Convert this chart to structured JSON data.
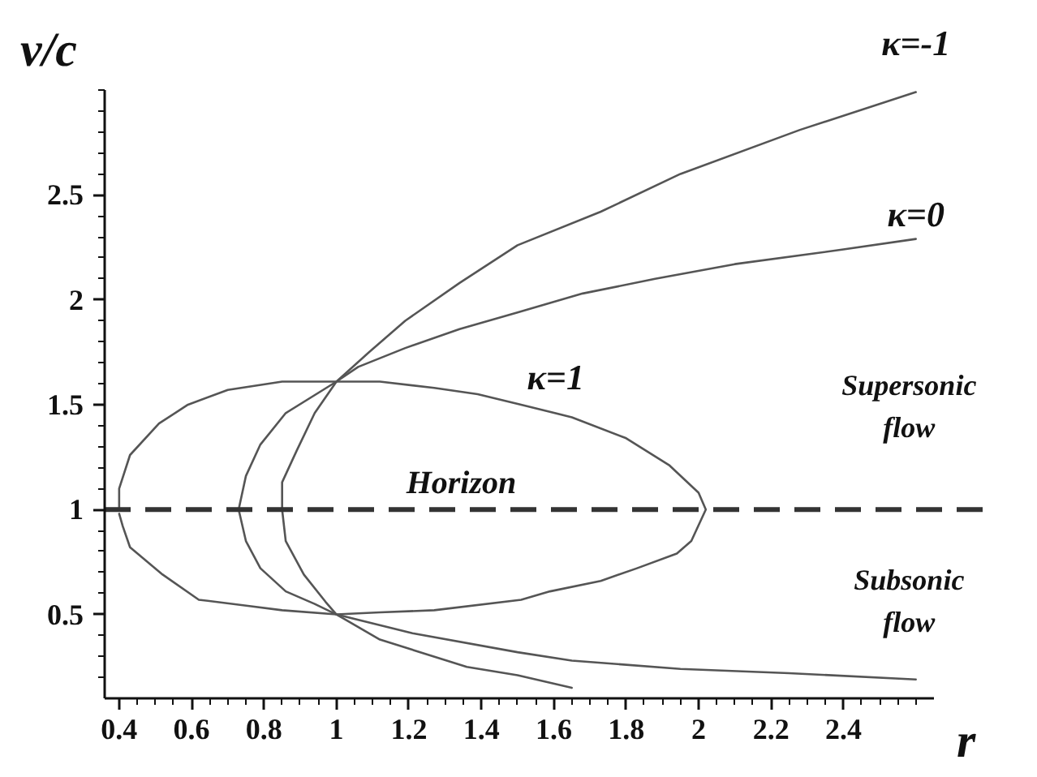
{
  "chart_data": {
    "type": "line",
    "xlabel": "r",
    "ylabel": "v/c",
    "xlim": [
      0.36,
      2.65
    ],
    "ylim": [
      0.1,
      3.0
    ],
    "xticks": [
      0.4,
      {
        "value": 0.45,
        "label": null
      },
      {
        "value": 0.5,
        "label": null
      },
      {
        "value": 0.55,
        "label": null
      },
      0.6,
      {
        "value": 0.65,
        "label": null
      },
      {
        "value": 0.7,
        "label": null
      },
      {
        "value": 0.75,
        "label": null
      },
      0.8,
      {
        "value": 0.85,
        "label": null
      },
      {
        "value": 0.9,
        "label": null
      },
      {
        "value": 0.95,
        "label": null
      },
      1,
      {
        "value": 1.05,
        "label": null
      },
      {
        "value": 1.1,
        "label": null
      },
      {
        "value": 1.15,
        "label": null
      },
      1.2,
      {
        "value": 1.25,
        "label": null
      },
      {
        "value": 1.3,
        "label": null
      },
      {
        "value": 1.35,
        "label": null
      },
      1.4,
      {
        "value": 1.45,
        "label": null
      },
      {
        "value": 1.5,
        "label": null
      },
      {
        "value": 1.55,
        "label": null
      },
      1.6,
      {
        "value": 1.65,
        "label": null
      },
      {
        "value": 1.7,
        "label": null
      },
      {
        "value": 1.75,
        "label": null
      },
      1.8,
      {
        "value": 1.85,
        "label": null
      },
      {
        "value": 1.9,
        "label": null
      },
      {
        "value": 1.95,
        "label": null
      },
      2,
      {
        "value": 2.05,
        "label": null
      },
      {
        "value": 2.1,
        "label": null
      },
      {
        "value": 2.15,
        "label": null
      },
      2.2,
      {
        "value": 2.25,
        "label": null
      },
      {
        "value": 2.3,
        "label": null
      },
      {
        "value": 2.35,
        "label": null
      },
      2.4,
      {
        "value": 2.45,
        "label": null
      },
      {
        "value": 2.5,
        "label": null
      },
      {
        "value": 2.55,
        "label": null
      },
      {
        "value": 2.6,
        "label": null
      }
    ],
    "yticks": [
      {
        "value": 0.2,
        "label": null
      },
      {
        "value": 0.3,
        "label": null
      },
      {
        "value": 0.4,
        "label": null
      },
      0.5,
      {
        "value": 0.6,
        "label": null
      },
      {
        "value": 0.7,
        "label": null
      },
      {
        "value": 0.8,
        "label": null
      },
      {
        "value": 0.9,
        "label": null
      },
      1,
      {
        "value": 1.1,
        "label": null
      },
      {
        "value": 1.2,
        "label": null
      },
      {
        "value": 1.3,
        "label": null
      },
      {
        "value": 1.4,
        "label": null
      },
      1.5,
      {
        "value": 1.6,
        "label": null
      },
      {
        "value": 1.7,
        "label": null
      },
      {
        "value": 1.8,
        "label": null
      },
      {
        "value": 1.9,
        "label": null
      },
      2,
      {
        "value": 2.1,
        "label": null
      },
      {
        "value": 2.2,
        "label": null
      },
      {
        "value": 2.3,
        "label": null
      },
      {
        "value": 2.4,
        "label": null
      },
      2.5,
      {
        "value": 2.6,
        "label": null
      },
      {
        "value": 2.7,
        "label": null
      },
      {
        "value": 2.8,
        "label": null
      },
      {
        "value": 2.9,
        "label": null
      },
      {
        "value": 3.0,
        "label": null
      }
    ],
    "grid": false,
    "legend": false,
    "line_style": "solid",
    "series": [
      {
        "name": "κ=-1",
        "color": "#555555",
        "x": [
          2.6,
          2.28,
          1.95,
          1.73,
          1.5,
          1.34,
          1.19,
          1.09,
          1.0,
          0.94,
          0.89,
          0.85,
          0.85,
          0.86,
          0.91,
          0.97,
          1.0,
          1.12,
          1.36,
          1.5,
          1.65
        ],
        "values": [
          2.99,
          2.81,
          2.6,
          2.42,
          2.26,
          2.08,
          1.9,
          1.75,
          1.61,
          1.46,
          1.28,
          1.13,
          1.0,
          0.85,
          0.69,
          0.56,
          0.5,
          0.38,
          0.25,
          0.21,
          0.15
        ]
      },
      {
        "name": "κ=0",
        "color": "#555555",
        "x": [
          2.6,
          2.4,
          2.1,
          1.88,
          1.68,
          1.5,
          1.34,
          1.19,
          1.06,
          1.0,
          0.86,
          0.79,
          0.75,
          0.73,
          0.75,
          0.79,
          0.86,
          0.94,
          1.0,
          1.21,
          1.5,
          1.65,
          1.95,
          2.25,
          2.6
        ],
        "values": [
          2.29,
          2.24,
          2.17,
          2.1,
          2.03,
          1.94,
          1.86,
          1.77,
          1.68,
          1.61,
          1.46,
          1.31,
          1.16,
          1.0,
          0.85,
          0.72,
          0.61,
          0.55,
          0.5,
          0.41,
          0.32,
          0.28,
          0.24,
          0.22,
          0.19
        ]
      },
      {
        "name": "κ=1",
        "color": "#555555",
        "x": [
          0.4,
          0.4,
          0.43,
          0.51,
          0.59,
          0.7,
          0.85,
          1.0,
          1.12,
          1.27,
          1.39,
          1.51,
          1.65,
          1.8,
          1.92,
          2.0,
          2.02,
          1.98,
          1.94,
          1.83,
          1.73,
          1.59,
          1.51,
          1.27,
          1.12,
          1.0,
          0.85,
          0.76,
          0.62,
          0.52,
          0.43,
          0.41,
          0.4
        ],
        "values": [
          1.0,
          1.1,
          1.26,
          1.41,
          1.5,
          1.57,
          1.61,
          1.61,
          1.61,
          1.58,
          1.55,
          1.5,
          1.44,
          1.34,
          1.21,
          1.08,
          1.0,
          0.85,
          0.79,
          0.72,
          0.66,
          0.61,
          0.57,
          0.52,
          0.51,
          0.5,
          0.52,
          0.54,
          0.57,
          0.69,
          0.82,
          0.92,
          0.98
        ]
      }
    ],
    "ref_lines": [
      {
        "axis": "y",
        "value": 1,
        "label": "Horizon",
        "color": "#333333",
        "line_style": "dashed"
      }
    ],
    "annotations": [
      "Supersonic flow",
      "Subsonic flow"
    ]
  }
}
